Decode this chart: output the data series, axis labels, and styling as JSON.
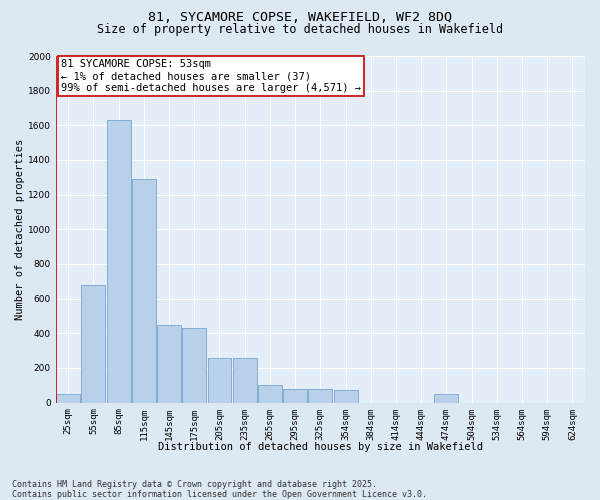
{
  "title": "81, SYCAMORE COPSE, WAKEFIELD, WF2 8DQ",
  "subtitle": "Size of property relative to detached houses in Wakefield",
  "xlabel": "Distribution of detached houses by size in Wakefield",
  "ylabel": "Number of detached properties",
  "categories": [
    "25sqm",
    "55sqm",
    "85sqm",
    "115sqm",
    "145sqm",
    "175sqm",
    "205sqm",
    "235sqm",
    "265sqm",
    "295sqm",
    "325sqm",
    "354sqm",
    "384sqm",
    "414sqm",
    "444sqm",
    "474sqm",
    "504sqm",
    "534sqm",
    "564sqm",
    "594sqm",
    "624sqm"
  ],
  "values": [
    50,
    680,
    1630,
    1290,
    450,
    430,
    260,
    260,
    100,
    80,
    80,
    70,
    0,
    0,
    0,
    48,
    0,
    0,
    0,
    0,
    0
  ],
  "bar_color": "#b8d0e8",
  "bar_edge_color": "#6699cc",
  "highlight_color": "#cc0000",
  "annotation_text": "81 SYCAMORE COPSE: 53sqm\n← 1% of detached houses are smaller (37)\n99% of semi-detached houses are larger (4,571) →",
  "ylim": [
    0,
    2000
  ],
  "yticks": [
    0,
    200,
    400,
    600,
    800,
    1000,
    1200,
    1400,
    1600,
    1800,
    2000
  ],
  "footnote": "Contains HM Land Registry data © Crown copyright and database right 2025.\nContains public sector information licensed under the Open Government Licence v3.0.",
  "bg_color": "#dce8f2",
  "plot_bg_color": "#e4eef8",
  "grid_color": "#ffffff",
  "title_fontsize": 9.5,
  "subtitle_fontsize": 8.5,
  "axis_label_fontsize": 7.5,
  "tick_fontsize": 6.5,
  "annotation_fontsize": 7.5,
  "footnote_fontsize": 6.0
}
